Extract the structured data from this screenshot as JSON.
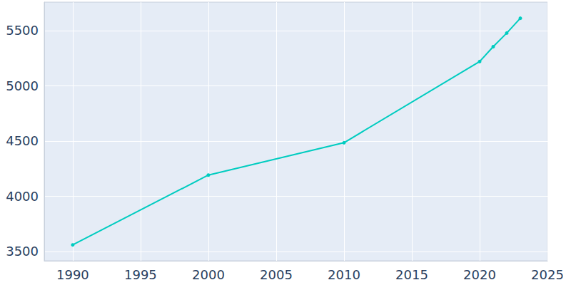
{
  "chart_data": {
    "type": "line",
    "x": [
      1990,
      2000,
      2010,
      2020,
      2021,
      2022,
      2023
    ],
    "values": [
      3560,
      4192,
      4485,
      5220,
      5355,
      5478,
      5612
    ],
    "color": "#00ccc0",
    "marker": "circle",
    "xlim": [
      1987.9,
      2025
    ],
    "xticks": [
      1990,
      1995,
      2000,
      2005,
      2010,
      2015,
      2020,
      2025
    ],
    "ylim": [
      3416,
      5758
    ],
    "yticks": [
      3500,
      4000,
      4500,
      5000,
      5500
    ],
    "grid": true
  }
}
